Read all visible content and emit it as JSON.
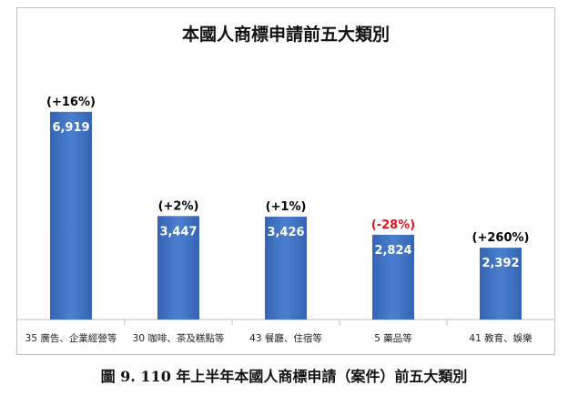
{
  "chart_data": {
    "type": "bar",
    "title": "本國人商標申請前五大類別",
    "categories": [
      "35 廣告、企業經營等",
      "30 咖啡、茶及糕點等",
      "43 餐廳、住宿等",
      "5 藥品等",
      "41 教育、娛樂"
    ],
    "values": [
      6919,
      3447,
      3426,
      2824,
      2392
    ],
    "value_labels": [
      "6,919",
      "3,447",
      "3,426",
      "2,824",
      "2,392"
    ],
    "change_labels": [
      "(+16%)",
      "(+2%)",
      "(+1%)",
      "(-28%)",
      "(+260%)"
    ],
    "change_colors": [
      "#000000",
      "#000000",
      "#000000",
      "#e8141b",
      "#000000"
    ],
    "bar_color": "#3f72c4",
    "xlabel": "",
    "ylabel": "",
    "ylim": [
      0,
      8400
    ],
    "grid": false,
    "legend": "none"
  },
  "caption": "圖 9. 110 年上半年本國人商標申請（案件）前五大類別"
}
